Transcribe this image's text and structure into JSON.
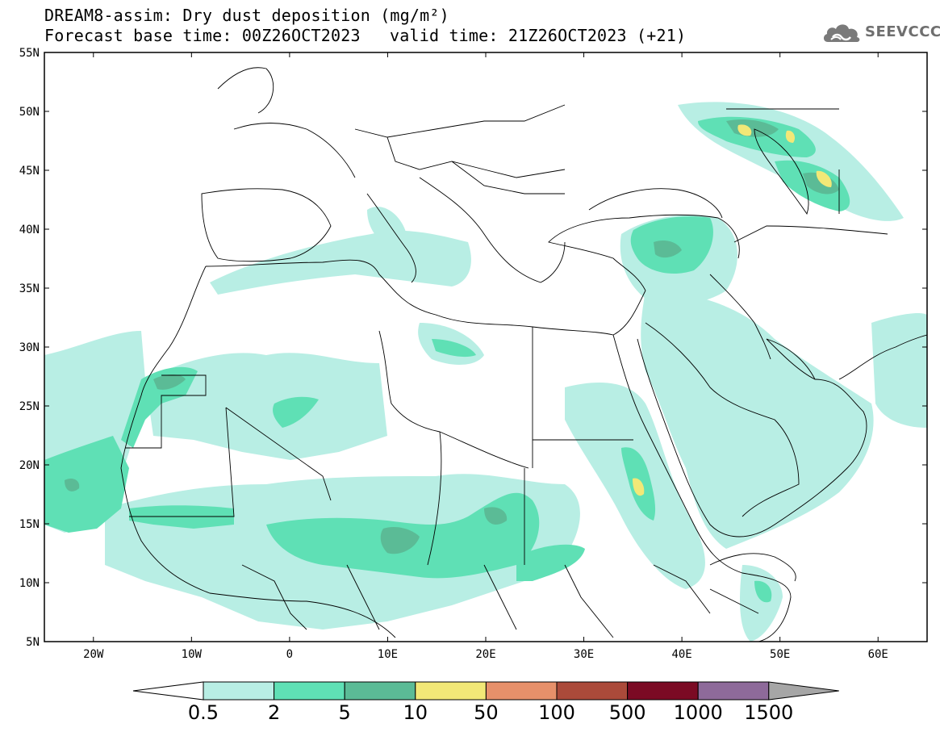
{
  "title": {
    "line1": "DREAM8-assim: Dry dust deposition (mg/m²)",
    "line2_left": "Forecast base time: 00Z26OCT2023",
    "line2_right": "valid time: 21Z26OCT2023 (+21)"
  },
  "logo": {
    "text": "SEEVCCC",
    "icon": "cloud-icon"
  },
  "map": {
    "lon_range": [
      -25,
      65
    ],
    "lat_range": [
      5,
      55
    ],
    "lat_ticks": [
      "5N",
      "10N",
      "15N",
      "20N",
      "25N",
      "30N",
      "35N",
      "40N",
      "45N",
      "50N",
      "55N"
    ],
    "lat_values": [
      5,
      10,
      15,
      20,
      25,
      30,
      35,
      40,
      45,
      50,
      55
    ],
    "lon_ticks": [
      "20W",
      "10W",
      "0",
      "10E",
      "20E",
      "30E",
      "40E",
      "50E",
      "60E"
    ],
    "lon_values": [
      -20,
      -10,
      0,
      10,
      20,
      30,
      40,
      50,
      60
    ]
  },
  "colorbar": {
    "labels": [
      "0.5",
      "2",
      "5",
      "10",
      "50",
      "100",
      "500",
      "1000",
      "1500"
    ],
    "colors": [
      "#b8eee4",
      "#5fe0b5",
      "#5bbb96",
      "#f2e877",
      "#e7906a",
      "#ab4a3a",
      "#7b0a24",
      "#8e6a9a",
      "#a6a6a6"
    ],
    "under_color": "#ffffff",
    "over_color": "#a6a6a6"
  }
}
